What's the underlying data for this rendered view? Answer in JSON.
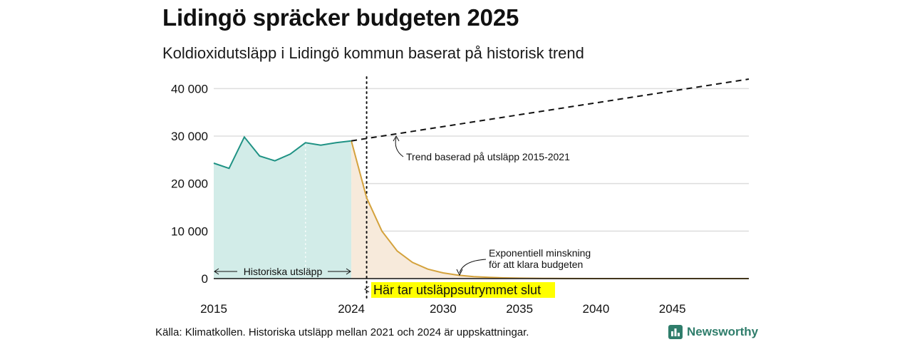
{
  "title": "Lidingö spräcker budgeten 2025",
  "subtitle": "Koldioxidutsläpp i Lidingö kommun baserat på historisk trend",
  "source": "Källa: Klimatkollen. Historiska utsläpp mellan 2021 och 2024 är uppskattningar.",
  "logo": {
    "text": "Newsworthy",
    "icon": "newsworthy-bar-chart-icon"
  },
  "chart_data": {
    "type": "area",
    "xlim": [
      2015,
      2050
    ],
    "ylim": [
      0,
      42000
    ],
    "x_ticks": [
      2015,
      2024,
      2030,
      2035,
      2040,
      2045
    ],
    "x_tick_labels": [
      "2015",
      "2024",
      "2030",
      "2035",
      "2040",
      "2045"
    ],
    "y_ticks": [
      0,
      10000,
      20000,
      30000,
      40000
    ],
    "y_tick_labels": [
      "0",
      "10 000",
      "20 000",
      "30 000",
      "40 000"
    ],
    "grid": "horizontal",
    "colors": {
      "historical": "#1f9284",
      "historical_fill": "#d2ece8",
      "budget": "#d4a23c",
      "budget_fill": "#f7eadb",
      "trend": "#111111",
      "highlight": "#ffff00"
    },
    "series": [
      {
        "name": "Historiska utsläpp",
        "style": "line-area",
        "x": [
          2015,
          2016,
          2017,
          2018,
          2019,
          2020,
          2021,
          2022,
          2023,
          2024
        ],
        "y": [
          24300,
          23200,
          29800,
          25800,
          24800,
          26200,
          28600,
          28100,
          28600,
          29000
        ]
      },
      {
        "name": "Exponentiell minskning för att klara budgeten",
        "style": "line-area",
        "x": [
          2024,
          2025,
          2026,
          2027,
          2028,
          2029,
          2030,
          2031,
          2032,
          2033,
          2034,
          2035,
          2036,
          2037,
          2038,
          2040,
          2043,
          2046,
          2050
        ],
        "y": [
          29000,
          17000,
          10000,
          5800,
          3400,
          2000,
          1200,
          700,
          420,
          250,
          150,
          90,
          55,
          32,
          19,
          7,
          2,
          1,
          0
        ]
      },
      {
        "name": "Trend baserad på utsläpp 2015-2021",
        "style": "dashed",
        "x": [
          2024,
          2050
        ],
        "y": [
          29000,
          42000
        ]
      }
    ],
    "vertical_markers": [
      {
        "x": 2021,
        "style": "dotted-white"
      },
      {
        "x": 2025,
        "style": "dotted-black"
      }
    ],
    "annotations": {
      "trend": "Trend baserad på utsläpp 2015-2021",
      "exponential_line1": "Exponentiell minskning",
      "exponential_line2": "för att klara budgeten",
      "historical": "Historiska utsläpp",
      "budget_end": "Här tar utsläppsutrymmet slut"
    }
  }
}
